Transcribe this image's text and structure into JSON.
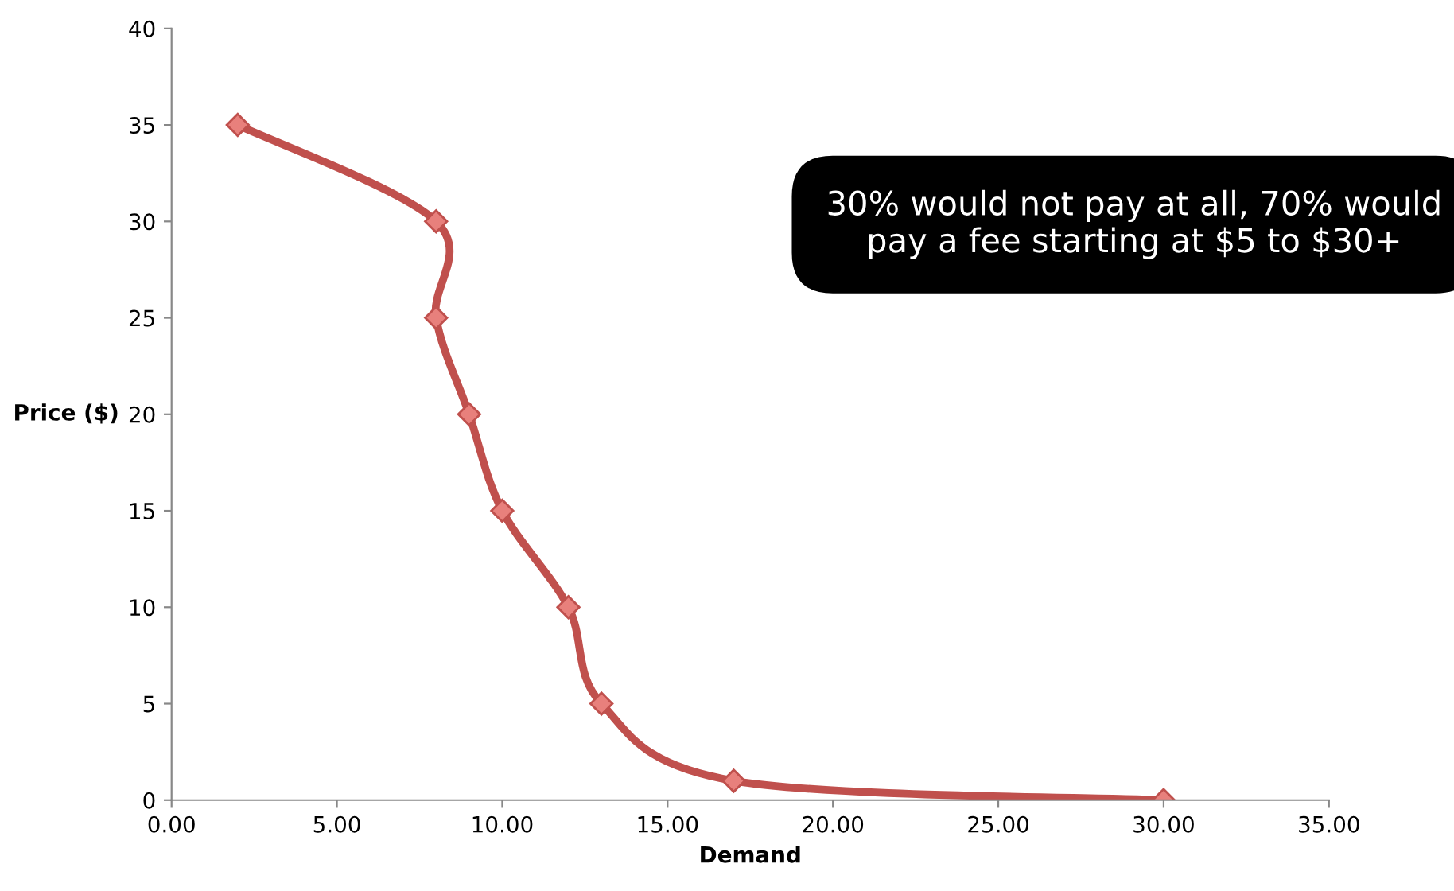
{
  "chart_data": {
    "type": "line",
    "xlabel": "Demand",
    "ylabel": "Price ($)",
    "x": [
      2,
      8,
      8,
      9,
      10,
      12,
      13,
      17,
      30
    ],
    "series": [
      {
        "color": "#c0504d",
        "values": [
          35,
          30,
          25,
          20,
          15,
          10,
          5,
          1,
          0
        ]
      }
    ],
    "marker": "diamond",
    "line_style": "solid",
    "grid": false,
    "legend": false,
    "xlim": [
      0,
      35
    ],
    "ylim": [
      0,
      40
    ],
    "xticks": [
      {
        "value": 0,
        "label": "0.00"
      },
      {
        "value": 5,
        "label": "5.00"
      },
      {
        "value": 10,
        "label": "10.00"
      },
      {
        "value": 15,
        "label": "15.00"
      },
      {
        "value": 20,
        "label": "20.00"
      },
      {
        "value": 25,
        "label": "25.00"
      },
      {
        "value": 30,
        "label": "30.00"
      },
      {
        "value": 35,
        "label": "35.00"
      }
    ],
    "yticks": [
      0,
      5,
      10,
      15,
      20,
      25,
      30,
      35,
      40
    ],
    "annotations": [
      "30% would not pay at all, 70% would pay a fee starting at $5 to $30+"
    ]
  }
}
